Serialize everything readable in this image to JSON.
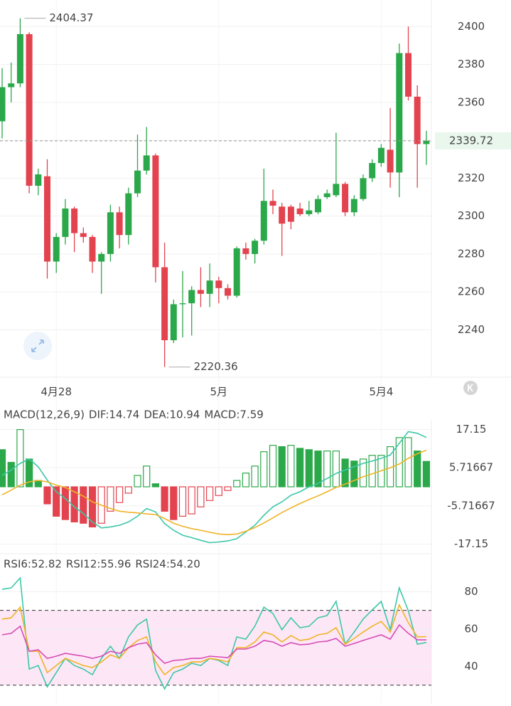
{
  "chart_data": [
    {
      "type": "candlestick",
      "categories": [
        null,
        null,
        null,
        null,
        null,
        null,
        "4月28",
        null,
        null,
        null,
        null,
        null,
        null,
        null,
        null,
        null,
        null,
        null,
        null,
        null,
        null,
        null,
        null,
        null,
        "5月",
        null,
        null,
        null,
        null,
        null,
        null,
        null,
        null,
        null,
        null,
        null,
        null,
        null,
        null,
        null,
        null,
        null,
        "5月4",
        null,
        null,
        null,
        null,
        null
      ],
      "open": [
        2350,
        2368,
        2370,
        2396,
        2316,
        2321,
        2276,
        2289,
        2304,
        2291,
        2289,
        2276,
        2280,
        2302,
        2290,
        2312,
        2324,
        2332,
        2273,
        2234.5,
        2253.5,
        2254,
        2261,
        2259,
        2266,
        2262,
        2258,
        2283,
        2280,
        2287,
        2308,
        2305,
        2305,
        2304,
        2301,
        2302,
        2310,
        2311,
        2317,
        2302,
        2309,
        2320,
        2328,
        2335,
        2323,
        2386,
        2363,
        2338
      ],
      "high": [
        2378,
        2381,
        2404.37,
        2397,
        2325,
        2330,
        2291,
        2309,
        2305,
        2294,
        2290,
        2281,
        2306,
        2305,
        2315,
        2343,
        2347,
        2333,
        2286,
        2256,
        2271,
        2263,
        2273,
        2275,
        2268,
        2264,
        2284,
        2286,
        2288,
        2325,
        2314,
        2307,
        2306,
        2307,
        2308,
        2311,
        2314,
        2344,
        2318,
        2311,
        2322,
        2330,
        2338,
        2357,
        2391,
        2400,
        2369,
        2345
      ],
      "low": [
        2341,
        2360,
        2368,
        2312,
        2311,
        2267,
        2270,
        2285,
        2281,
        2286,
        2270,
        2259,
        2276,
        2283,
        2285,
        2310,
        2322,
        2265,
        2220.36,
        2233,
        2236,
        2237,
        2252,
        2252,
        2254,
        2256,
        2257,
        2277,
        2275,
        2285,
        2301,
        2279,
        2293,
        2300,
        2300,
        2301,
        2309,
        2310,
        2300,
        2300,
        2308,
        2318,
        2326,
        2315,
        2310,
        2361,
        2315,
        2327
      ],
      "close": [
        2368,
        2370,
        2396,
        2316,
        2322,
        2276,
        2289,
        2304,
        2291,
        2289,
        2276,
        2280,
        2302,
        2290,
        2312,
        2324,
        2332,
        2273,
        2234.5,
        2253.5,
        2254,
        2261,
        2259,
        2266,
        2262,
        2258,
        2283,
        2280,
        2287,
        2308,
        2305.5,
        2296,
        2297,
        2301,
        2303,
        2309,
        2312,
        2317,
        2302,
        2309,
        2320,
        2328,
        2336,
        2323,
        2386,
        2363,
        2338,
        2339.72
      ],
      "up_color": "#2ba84a",
      "down_color": "#e3434f",
      "ylim": [
        2215,
        2414
      ],
      "yticks": [
        2240,
        2260,
        2280,
        2300,
        2320,
        2340,
        2360,
        2380,
        2400
      ],
      "grid": true,
      "last_price": 2339.72,
      "max_marker": 2404.37,
      "min_marker": 2220.36
    },
    {
      "type": "macd",
      "title": "MACD(12,26,9)",
      "series": [
        {
          "name": "DIF:14.74",
          "color": "#3cc7a8",
          "values": [
            3.4,
            5,
            7,
            8.3,
            6,
            2,
            -1.5,
            -3.5,
            -6,
            -8,
            -10.5,
            -12.3,
            -12,
            -11.5,
            -10.5,
            -8.8,
            -6.5,
            -7.5,
            -11,
            -13,
            -14.5,
            -15.2,
            -16,
            -16.7,
            -16.5,
            -16.2,
            -15.5,
            -13.5,
            -11.5,
            -8.5,
            -6,
            -4.5,
            -2.5,
            -1.5,
            0,
            1,
            2.5,
            4,
            5,
            6,
            7,
            7.7,
            8.5,
            9.5,
            13,
            16.5,
            16,
            14.74
          ]
        },
        {
          "name": "DEA:10.94",
          "color": "#efb325",
          "values": [
            -2.4,
            -1,
            0.5,
            1.5,
            1.9,
            1.5,
            0.5,
            -0.2,
            -1.5,
            -2.8,
            -4.5,
            -5.5,
            -6.5,
            -7.3,
            -7.6,
            -7.8,
            -8.1,
            -8.3,
            -9.5,
            -10.9,
            -11.8,
            -12.5,
            -13,
            -13.6,
            -14.1,
            -14.3,
            -14.1,
            -13.3,
            -12.2,
            -10.8,
            -9.3,
            -7.7,
            -6.3,
            -5,
            -3.8,
            -2.7,
            -1.5,
            -0.2,
            0.8,
            1.9,
            3,
            3.9,
            4.8,
            5.7,
            6.8,
            8.5,
            9.9,
            10.94
          ]
        },
        {
          "name": "MACD:7.59",
          "color": "#d64bb5",
          "type": "bar",
          "values": [
            11.1,
            7.3,
            17.1,
            8.3,
            1.9,
            -5.1,
            -8.8,
            -9.8,
            -10.5,
            -10.9,
            -12,
            -10.9,
            -7.3,
            -4.7,
            -1.9,
            3.4,
            6.2,
            0.9,
            -7.3,
            -9.8,
            -8.8,
            -8.1,
            -6,
            -4.1,
            -2.6,
            -1.1,
            1.9,
            4.1,
            6.2,
            10.5,
            12.4,
            12,
            12.4,
            11.5,
            11.1,
            10.7,
            10.7,
            10.7,
            8.3,
            7.7,
            8.3,
            9.4,
            9.4,
            12,
            14.7,
            14.7,
            10.7,
            7.59
          ]
        }
      ],
      "up_color": "#2ba84a",
      "down_color": "#e3434f",
      "title_color": "#999999",
      "ylim": [
        -20,
        20
      ],
      "yticks": [
        17.15,
        5.71667,
        -5.71667,
        -17.15
      ],
      "grid": true
    },
    {
      "type": "rsi",
      "series": [
        {
          "name": "RSI6:52.82",
          "color": "#3cc7a8",
          "values": [
            81.2,
            82,
            87.3,
            38.6,
            40.5,
            29.1,
            36.7,
            44.3,
            40.5,
            38.6,
            35.6,
            44.3,
            50.8,
            44.3,
            55.8,
            62.2,
            65.3,
            37.9,
            28,
            36.7,
            38.6,
            41.7,
            40.5,
            44.3,
            43.2,
            40.5,
            55.8,
            54.6,
            61.5,
            71.7,
            68.3,
            59.6,
            66,
            60.7,
            61.5,
            66,
            67.2,
            74.8,
            51.9,
            58.4,
            65.3,
            70.2,
            74.8,
            59.6,
            82,
            69.8,
            51.9,
            52.82
          ]
        },
        {
          "name": "RSI12:55.96",
          "color": "#efb325",
          "values": [
            65.3,
            66,
            71.7,
            48.1,
            48.1,
            36.7,
            40.5,
            44.3,
            42.4,
            40.5,
            39.4,
            42.4,
            46.2,
            44.3,
            50,
            53.9,
            55.8,
            42.4,
            35.6,
            39.4,
            40.5,
            42.4,
            42.4,
            44.3,
            43.6,
            42.4,
            50,
            50,
            53.1,
            58.4,
            56.9,
            53.1,
            56.5,
            53.9,
            54.6,
            56.9,
            57.7,
            60.7,
            51.9,
            55,
            58.4,
            61.5,
            64.1,
            58.4,
            72.9,
            63.4,
            55.8,
            55.96
          ]
        },
        {
          "name": "RSI24:54.20",
          "color": "#d64bb5",
          "values": [
            56.9,
            57.7,
            61.5,
            48.1,
            48.9,
            44.3,
            45.5,
            47,
            46.2,
            45.5,
            44.3,
            45.5,
            48.1,
            47,
            50,
            51.9,
            52.7,
            46.2,
            41.7,
            43.2,
            43.6,
            44.3,
            44.3,
            45.5,
            45.1,
            44.7,
            49.3,
            49.3,
            50.8,
            53.9,
            53.1,
            50.8,
            52.7,
            51.6,
            51.9,
            53.1,
            53.5,
            55,
            50.8,
            52.3,
            53.9,
            55.4,
            56.9,
            54.6,
            62.2,
            57.7,
            54.2,
            54.2
          ]
        }
      ],
      "bands": [
        30,
        70
      ],
      "band_color": "#fde7f6",
      "ylim": [
        20,
        90
      ],
      "yticks": [
        40,
        60,
        80
      ],
      "grid": true
    }
  ]
}
